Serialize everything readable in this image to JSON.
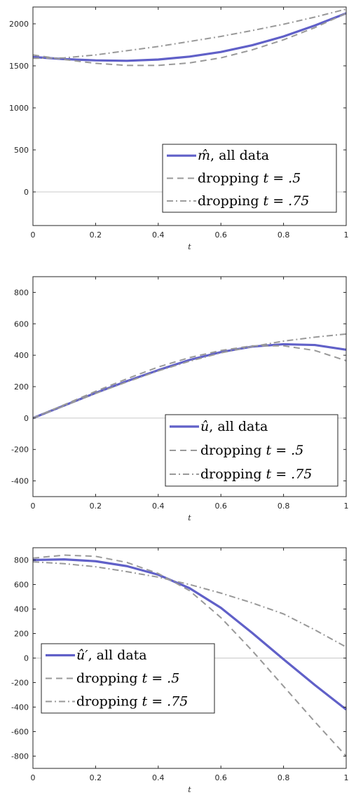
{
  "chart_data": [
    {
      "type": "line",
      "xlabel": "t",
      "xlim": [
        0,
        1
      ],
      "ylim": [
        -400,
        2200
      ],
      "xticks": [
        "0",
        "0.2",
        "0.4",
        "0.6",
        "0.8",
        "1"
      ],
      "yticks": [
        "0",
        "500",
        "1000",
        "1500",
        "2000"
      ],
      "legend_position": "bottom-right",
      "series": [
        {
          "name": "m̂, all data",
          "legend_symbol": "m̂",
          "legend_rest": ", all data",
          "style": "solid",
          "color": "#6060c8",
          "x": [
            0,
            0.1,
            0.2,
            0.3,
            0.4,
            0.5,
            0.6,
            0.7,
            0.8,
            0.9,
            1.0
          ],
          "y": [
            1605,
            1580,
            1565,
            1560,
            1575,
            1610,
            1665,
            1745,
            1850,
            1980,
            2125
          ]
        },
        {
          "name": "dropping t = .5",
          "legend_prefix": "dropping ",
          "legend_math": "t = .5",
          "style": "dashed",
          "color": "#999999",
          "x": [
            0,
            0.1,
            0.2,
            0.3,
            0.4,
            0.5,
            0.6,
            0.7,
            0.8,
            0.9,
            1.0
          ],
          "y": [
            1630,
            1575,
            1530,
            1505,
            1505,
            1535,
            1595,
            1690,
            1810,
            1955,
            2125
          ]
        },
        {
          "name": "dropping t = .75",
          "legend_prefix": "dropping ",
          "legend_math": "t = .75",
          "style": "dashdot",
          "color": "#999999",
          "x": [
            0,
            0.1,
            0.2,
            0.3,
            0.4,
            0.5,
            0.6,
            0.7,
            0.8,
            0.9,
            1.0
          ],
          "y": [
            1590,
            1595,
            1630,
            1680,
            1730,
            1790,
            1850,
            1920,
            1995,
            2080,
            2175
          ]
        }
      ]
    },
    {
      "type": "line",
      "xlabel": "t",
      "xlim": [
        0,
        1
      ],
      "ylim": [
        -500,
        900
      ],
      "xticks": [
        "0",
        "0.2",
        "0.4",
        "0.6",
        "0.8",
        "1"
      ],
      "yticks": [
        "-400",
        "-200",
        "0",
        "200",
        "400",
        "600",
        "800"
      ],
      "legend_position": "bottom-right",
      "series": [
        {
          "name": "û, all data",
          "legend_symbol": "û",
          "legend_rest": ", all data",
          "style": "solid",
          "color": "#6060c8",
          "x": [
            0,
            0.1,
            0.2,
            0.3,
            0.4,
            0.5,
            0.6,
            0.7,
            0.8,
            0.9,
            1.0
          ],
          "y": [
            0,
            80,
            160,
            235,
            305,
            370,
            420,
            455,
            470,
            465,
            435
          ]
        },
        {
          "name": "dropping t = .5",
          "legend_prefix": "dropping ",
          "legend_math": "t = .5",
          "style": "dashed",
          "color": "#999999",
          "x": [
            0,
            0.1,
            0.2,
            0.3,
            0.4,
            0.5,
            0.6,
            0.7,
            0.8,
            0.9,
            1.0
          ],
          "y": [
            0,
            85,
            170,
            250,
            325,
            385,
            430,
            460,
            460,
            430,
            365
          ]
        },
        {
          "name": "dropping t = .75",
          "legend_prefix": "dropping ",
          "legend_math": "t = .75",
          "style": "dashdot",
          "color": "#999999",
          "x": [
            0,
            0.1,
            0.2,
            0.3,
            0.4,
            0.5,
            0.6,
            0.7,
            0.8,
            0.9,
            1.0
          ],
          "y": [
            0,
            78,
            157,
            230,
            300,
            362,
            415,
            455,
            490,
            515,
            535
          ]
        }
      ]
    },
    {
      "type": "line",
      "xlabel": "t",
      "xlim": [
        0,
        1
      ],
      "ylim": [
        -900,
        900
      ],
      "xticks": [
        "0",
        "0.2",
        "0.4",
        "0.6",
        "0.8",
        "1"
      ],
      "yticks": [
        "-800",
        "-600",
        "-400",
        "-200",
        "0",
        "200",
        "400",
        "600",
        "800"
      ],
      "legend_position": "bottom-left",
      "series": [
        {
          "name": "û′, all data",
          "legend_symbol": "û′",
          "legend_rest": ", all data",
          "style": "solid",
          "color": "#6060c8",
          "x": [
            0,
            0.1,
            0.2,
            0.3,
            0.4,
            0.5,
            0.6,
            0.7,
            0.8,
            0.9,
            1.0
          ],
          "y": [
            800,
            805,
            790,
            750,
            680,
            570,
            410,
            205,
            -10,
            -220,
            -420
          ]
        },
        {
          "name": "dropping t = .5",
          "legend_prefix": "dropping ",
          "legend_math": "t = .5",
          "style": "dashed",
          "color": "#999999",
          "x": [
            0,
            0.1,
            0.2,
            0.3,
            0.4,
            0.5,
            0.6,
            0.7,
            0.8,
            0.9,
            1.0
          ],
          "y": [
            815,
            840,
            830,
            780,
            690,
            550,
            330,
            60,
            -230,
            -520,
            -800
          ]
        },
        {
          "name": "dropping t = .75",
          "legend_prefix": "dropping ",
          "legend_math": "t = .75",
          "style": "dashdot",
          "color": "#999999",
          "x": [
            0,
            0.1,
            0.2,
            0.3,
            0.4,
            0.5,
            0.6,
            0.7,
            0.8,
            0.9,
            1.0
          ],
          "y": [
            785,
            770,
            745,
            705,
            660,
            600,
            530,
            450,
            360,
            230,
            90
          ]
        }
      ]
    }
  ]
}
